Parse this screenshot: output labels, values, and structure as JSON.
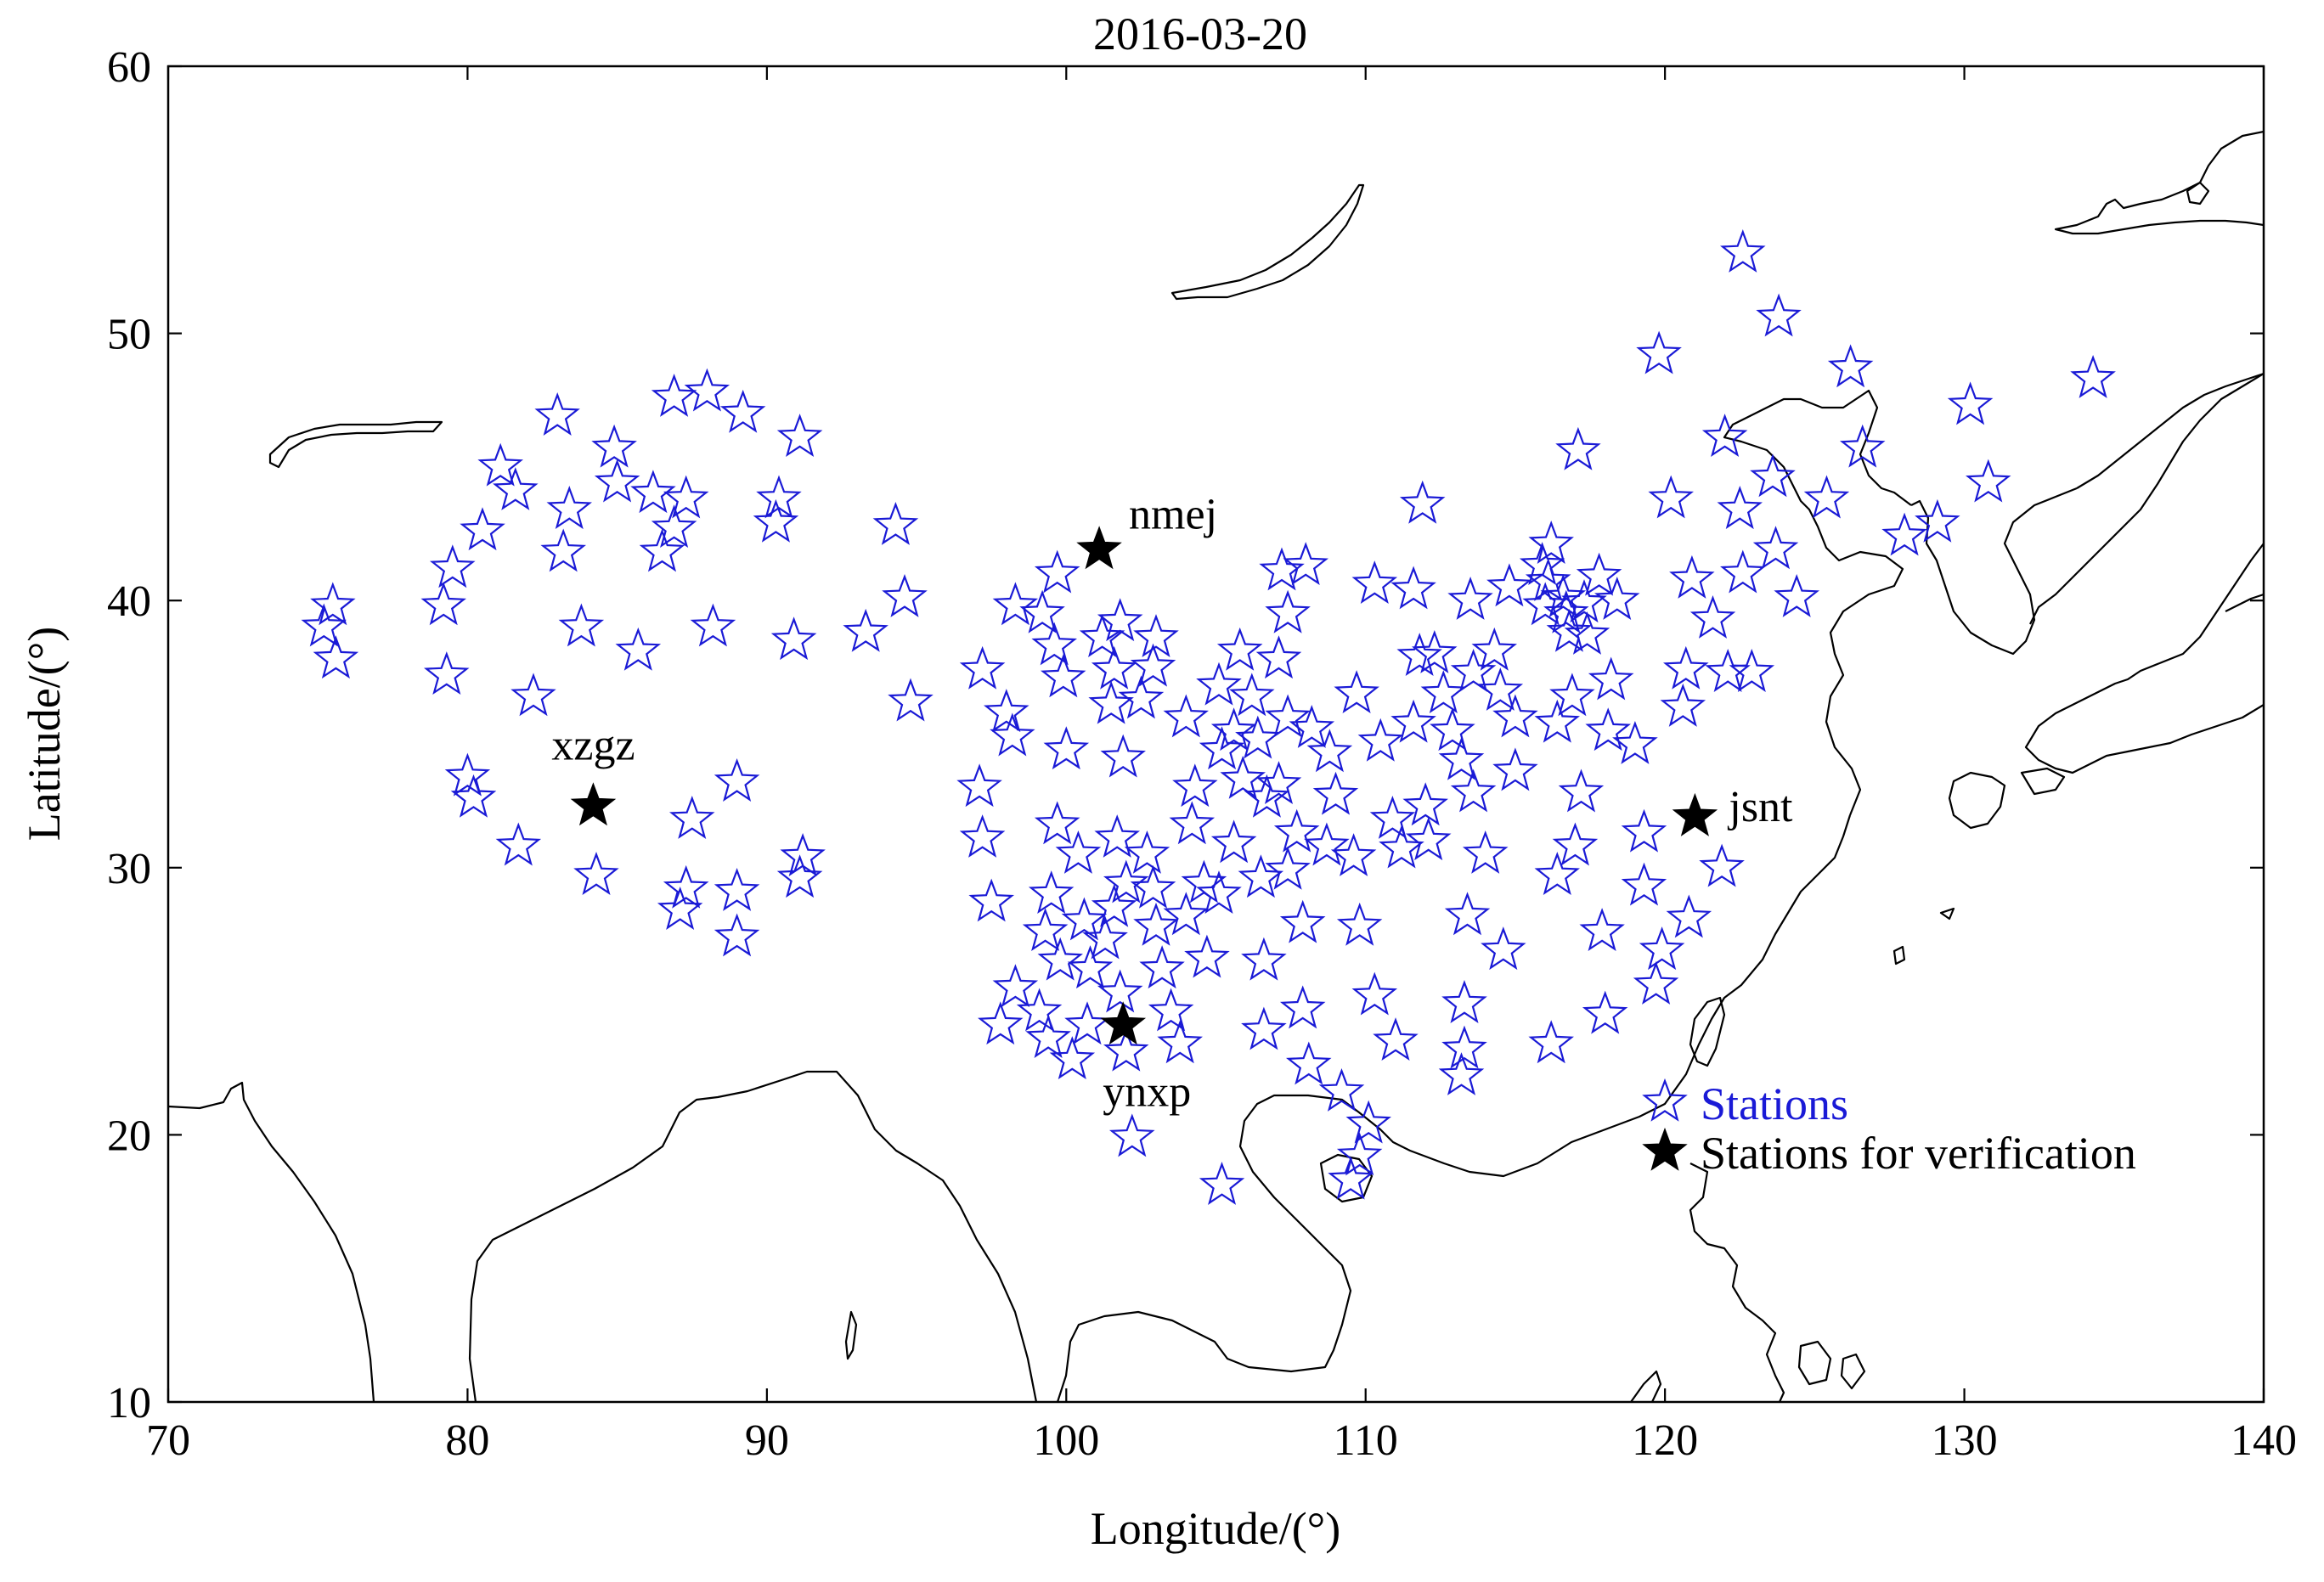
{
  "chart_data": {
    "type": "scatter",
    "title": "2016-03-20",
    "xlabel": "Longitude/(°)",
    "ylabel": "Latitude/(°)",
    "xlim": [
      70,
      140
    ],
    "ylim": [
      10,
      60
    ],
    "x_ticks": [
      "70",
      "80",
      "90",
      "100",
      "110",
      "120",
      "130",
      "140"
    ],
    "y_ticks": [
      "10",
      "20",
      "30",
      "40",
      "50",
      "60"
    ],
    "grid": false,
    "legend_position": "bottom-right",
    "legend": [
      {
        "label": "Stations",
        "marker": "open-star",
        "color": "#1a1ad6"
      },
      {
        "label": "Stations for verification",
        "marker": "filled-star",
        "color": "#000000"
      }
    ],
    "colors": {
      "stations": "#1a1ad6",
      "verification": "#000000",
      "coastline": "#000000"
    },
    "series": [
      {
        "name": "Stations",
        "marker": "open-star",
        "points": [
          [
            75.2,
            39.0
          ],
          [
            75.5,
            39.8
          ],
          [
            75.6,
            37.8
          ],
          [
            79.2,
            39.8
          ],
          [
            79.5,
            41.2
          ],
          [
            79.3,
            37.2
          ],
          [
            80.0,
            33.4
          ],
          [
            80.2,
            32.6
          ],
          [
            80.5,
            42.6
          ],
          [
            81.1,
            45.0
          ],
          [
            81.6,
            44.1
          ],
          [
            81.7,
            30.8
          ],
          [
            82.2,
            36.4
          ],
          [
            83.0,
            46.9
          ],
          [
            83.2,
            41.8
          ],
          [
            83.4,
            43.4
          ],
          [
            83.8,
            39.0
          ],
          [
            84.9,
            45.7
          ],
          [
            85.0,
            44.4
          ],
          [
            84.3,
            29.7
          ],
          [
            85.7,
            38.1
          ],
          [
            86.2,
            44.0
          ],
          [
            86.5,
            41.8
          ],
          [
            86.9,
            42.7
          ],
          [
            86.9,
            47.6
          ],
          [
            87.3,
            43.8
          ],
          [
            87.5,
            31.8
          ],
          [
            87.3,
            29.2
          ],
          [
            87.1,
            28.4
          ],
          [
            88.0,
            47.8
          ],
          [
            88.2,
            39.0
          ],
          [
            89.2,
            47.0
          ],
          [
            89.0,
            33.2
          ],
          [
            89.0,
            29.1
          ],
          [
            89.0,
            27.4
          ],
          [
            90.4,
            43.8
          ],
          [
            90.3,
            42.9
          ],
          [
            90.9,
            38.5
          ],
          [
            91.1,
            46.1
          ],
          [
            91.2,
            30.4
          ],
          [
            91.1,
            29.6
          ],
          [
            93.3,
            38.8
          ],
          [
            94.3,
            42.8
          ],
          [
            94.6,
            40.1
          ],
          [
            94.8,
            36.2
          ],
          [
            97.1,
            33.0
          ],
          [
            97.2,
            31.1
          ],
          [
            97.2,
            37.4
          ],
          [
            97.5,
            28.7
          ],
          [
            98.0,
            35.8
          ],
          [
            98.3,
            39.8
          ],
          [
            98.2,
            34.9
          ],
          [
            97.8,
            24.1
          ],
          [
            98.3,
            25.5
          ],
          [
            99.2,
            39.5
          ],
          [
            99.7,
            41.0
          ],
          [
            99.6,
            38.3
          ],
          [
            99.9,
            37.1
          ],
          [
            100.0,
            34.4
          ],
          [
            99.7,
            31.6
          ],
          [
            99.5,
            29.0
          ],
          [
            99.3,
            27.6
          ],
          [
            99.8,
            26.5
          ],
          [
            99.1,
            24.6
          ],
          [
            99.4,
            23.6
          ],
          [
            100.2,
            22.8
          ],
          [
            100.4,
            30.5
          ],
          [
            100.6,
            28.0
          ],
          [
            100.8,
            26.2
          ],
          [
            100.7,
            24.1
          ],
          [
            101.2,
            38.6
          ],
          [
            101.6,
            37.4
          ],
          [
            101.8,
            39.2
          ],
          [
            101.5,
            36.1
          ],
          [
            101.9,
            34.1
          ],
          [
            101.7,
            31.1
          ],
          [
            102.0,
            29.4
          ],
          [
            101.6,
            28.5
          ],
          [
            101.3,
            27.3
          ],
          [
            101.8,
            25.3
          ],
          [
            102.0,
            23.1
          ],
          [
            102.2,
            19.9
          ],
          [
            102.5,
            36.3
          ],
          [
            102.9,
            37.5
          ],
          [
            103.0,
            38.6
          ],
          [
            102.7,
            30.5
          ],
          [
            102.9,
            29.2
          ],
          [
            103.0,
            27.8
          ],
          [
            103.2,
            26.2
          ],
          [
            103.5,
            24.6
          ],
          [
            103.8,
            23.4
          ],
          [
            104.0,
            35.6
          ],
          [
            104.3,
            33.0
          ],
          [
            104.2,
            31.6
          ],
          [
            104.6,
            29.4
          ],
          [
            104.0,
            28.2
          ],
          [
            104.7,
            26.6
          ],
          [
            105.1,
            36.8
          ],
          [
            105.2,
            34.4
          ],
          [
            105.6,
            35.1
          ],
          [
            105.9,
            33.3
          ],
          [
            105.6,
            30.9
          ],
          [
            105.1,
            29.0
          ],
          [
            105.2,
            18.1
          ],
          [
            105.8,
            38.1
          ],
          [
            106.2,
            36.4
          ],
          [
            106.4,
            34.8
          ],
          [
            106.7,
            32.6
          ],
          [
            106.5,
            29.6
          ],
          [
            106.6,
            26.5
          ],
          [
            106.6,
            23.9
          ],
          [
            107.1,
            37.8
          ],
          [
            107.4,
            35.6
          ],
          [
            107.1,
            33.1
          ],
          [
            107.7,
            31.3
          ],
          [
            107.4,
            29.9
          ],
          [
            107.9,
            27.9
          ],
          [
            107.9,
            24.7
          ],
          [
            108.1,
            22.6
          ],
          [
            107.4,
            39.5
          ],
          [
            107.2,
            41.1
          ],
          [
            108.0,
            41.3
          ],
          [
            108.2,
            35.2
          ],
          [
            108.8,
            34.3
          ],
          [
            109.0,
            32.7
          ],
          [
            108.7,
            30.8
          ],
          [
            109.7,
            36.5
          ],
          [
            109.6,
            30.4
          ],
          [
            109.8,
            27.8
          ],
          [
            109.2,
            21.6
          ],
          [
            109.5,
            18.3
          ],
          [
            109.8,
            19.2
          ],
          [
            110.1,
            20.4
          ],
          [
            110.3,
            40.6
          ],
          [
            110.5,
            34.7
          ],
          [
            110.9,
            31.8
          ],
          [
            110.3,
            25.2
          ],
          [
            111.0,
            23.5
          ],
          [
            111.2,
            30.7
          ],
          [
            111.6,
            40.4
          ],
          [
            111.8,
            37.9
          ],
          [
            111.6,
            35.4
          ],
          [
            112.0,
            32.3
          ],
          [
            112.1,
            31.0
          ],
          [
            111.9,
            43.6
          ],
          [
            112.3,
            38.0
          ],
          [
            112.6,
            36.5
          ],
          [
            112.9,
            35.1
          ],
          [
            113.2,
            34.0
          ],
          [
            113.5,
            40.0
          ],
          [
            113.6,
            37.3
          ],
          [
            113.6,
            32.8
          ],
          [
            113.4,
            28.2
          ],
          [
            113.3,
            24.9
          ],
          [
            113.3,
            23.2
          ],
          [
            113.2,
            22.2
          ],
          [
            114.0,
            30.5
          ],
          [
            114.3,
            38.1
          ],
          [
            114.5,
            36.6
          ],
          [
            114.8,
            40.5
          ],
          [
            115.0,
            35.6
          ],
          [
            115.0,
            33.6
          ],
          [
            114.6,
            26.9
          ],
          [
            115.9,
            41.3
          ],
          [
            116.2,
            42.1
          ],
          [
            116.1,
            40.7
          ],
          [
            116.0,
            39.8
          ],
          [
            116.4,
            35.4
          ],
          [
            116.4,
            29.7
          ],
          [
            116.2,
            23.4
          ],
          [
            116.6,
            40.1
          ],
          [
            116.7,
            39.5
          ],
          [
            116.8,
            38.8
          ],
          [
            116.9,
            36.4
          ],
          [
            117.0,
            30.8
          ],
          [
            117.1,
            45.6
          ],
          [
            117.2,
            32.8
          ],
          [
            117.3,
            39.9
          ],
          [
            117.4,
            38.7
          ],
          [
            117.8,
            40.9
          ],
          [
            117.9,
            27.6
          ],
          [
            118.0,
            24.5
          ],
          [
            118.2,
            37.0
          ],
          [
            118.1,
            35.1
          ],
          [
            118.4,
            40.0
          ],
          [
            119.0,
            34.6
          ],
          [
            119.3,
            31.3
          ],
          [
            119.3,
            29.3
          ],
          [
            119.9,
            26.9
          ],
          [
            119.7,
            25.6
          ],
          [
            119.8,
            49.2
          ],
          [
            120.2,
            43.8
          ],
          [
            120.6,
            36.0
          ],
          [
            120.7,
            37.4
          ],
          [
            120.9,
            40.8
          ],
          [
            120.8,
            28.1
          ],
          [
            121.6,
            39.3
          ],
          [
            122.0,
            46.1
          ],
          [
            122.1,
            37.3
          ],
          [
            122.5,
            43.4
          ],
          [
            122.6,
            41.0
          ],
          [
            122.9,
            37.3
          ],
          [
            122.6,
            53.0
          ],
          [
            123.6,
            44.6
          ],
          [
            123.7,
            41.9
          ],
          [
            123.8,
            50.6
          ],
          [
            124.4,
            40.1
          ],
          [
            121.9,
            30.0
          ],
          [
            125.4,
            43.8
          ],
          [
            126.2,
            48.7
          ],
          [
            126.6,
            45.7
          ],
          [
            128.0,
            42.4
          ],
          [
            129.1,
            42.9
          ],
          [
            130.2,
            47.3
          ],
          [
            130.8,
            44.4
          ],
          [
            134.3,
            48.3
          ]
        ]
      },
      {
        "name": "Stations for verification",
        "marker": "filled-star",
        "points": [
          [
            84.2,
            32.3
          ],
          [
            101.1,
            41.9
          ],
          [
            101.9,
            24.1
          ],
          [
            121.0,
            31.9
          ]
        ],
        "labels": [
          "xzgz",
          "nmej",
          "ynxp",
          "jsnt"
        ]
      }
    ]
  }
}
